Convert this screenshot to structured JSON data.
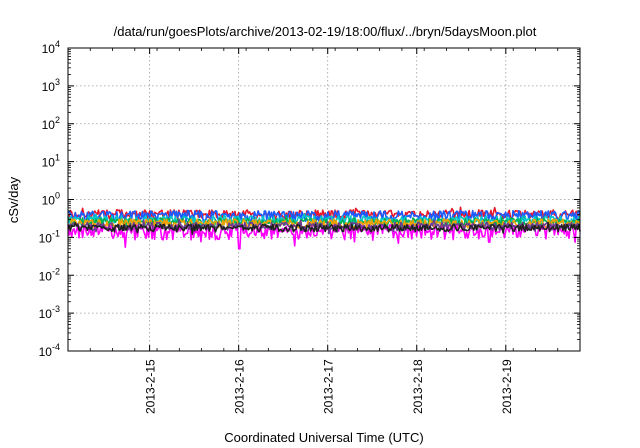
{
  "chart_data": {
    "type": "line",
    "title": "/data/run/goesPlots/archive/2013-02-19/18:00/flux/../bryn/5daysMoon.plot",
    "xlabel": "Coordinated Universal Time (UTC)",
    "ylabel": "cSv/day",
    "yscale": "log",
    "ylim": [
      0.0001,
      10000
    ],
    "xlim": [
      "2013-02-14 02:00",
      "2013-02-19 20:00"
    ],
    "grid": true,
    "y_ticks": [
      {
        "base": "10",
        "exp": "-4"
      },
      {
        "base": "10",
        "exp": "-3"
      },
      {
        "base": "10",
        "exp": "-2"
      },
      {
        "base": "10",
        "exp": "-1"
      },
      {
        "base": "10",
        "exp": "0"
      },
      {
        "base": "10",
        "exp": "1"
      },
      {
        "base": "10",
        "exp": "2"
      },
      {
        "base": "10",
        "exp": "3"
      },
      {
        "base": "10",
        "exp": "4"
      }
    ],
    "x_ticks": [
      "2013-2-15",
      "2013-2-16",
      "2013-2-17",
      "2013-2-18",
      "2013-2-19"
    ],
    "series": [
      {
        "color": "#e8162b",
        "level": 0.42,
        "amp": 0.07,
        "dips": []
      },
      {
        "color": "#1a5cff",
        "level": 0.38,
        "amp": 0.08,
        "dips": []
      },
      {
        "color": "#00c8c8",
        "level": 0.29,
        "amp": 0.05,
        "dips": []
      },
      {
        "color": "#00b050",
        "level": 0.26,
        "amp": 0.04,
        "dips": []
      },
      {
        "color": "#f0a000",
        "level": 0.24,
        "amp": 0.04,
        "dips": []
      },
      {
        "color": "#ff00ff",
        "level": 0.15,
        "amp": 0.04,
        "dips": [
          [
            "2013-02-14 17:30",
            0.055
          ],
          [
            "2013-02-16 00:10",
            0.05
          ],
          [
            "2013-02-16 15:00",
            0.06
          ],
          [
            "2013-02-17 19:10",
            0.07
          ],
          [
            "2013-02-18 19:30",
            0.075
          ]
        ]
      },
      {
        "color": "#6a3d8f",
        "level": 0.2,
        "amp": 0.03,
        "dips": []
      },
      {
        "color": "#222222",
        "level": 0.18,
        "amp": 0.025,
        "dips": []
      }
    ]
  }
}
